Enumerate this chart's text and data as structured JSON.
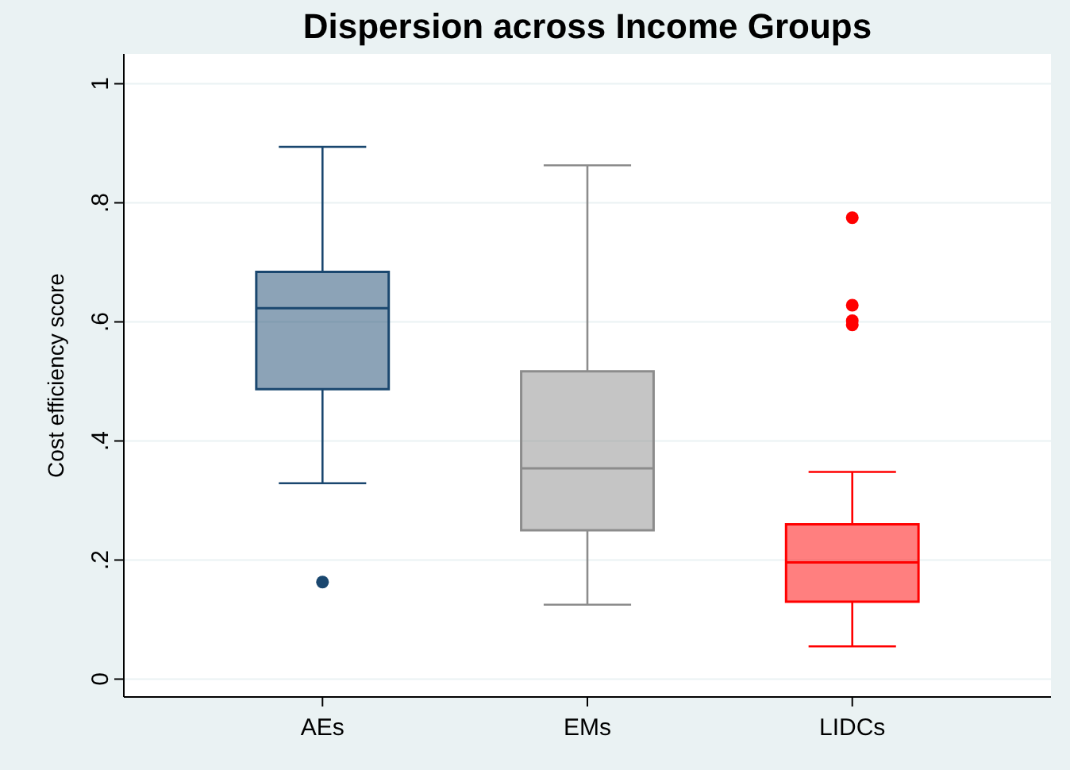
{
  "chart_data": {
    "type": "box",
    "title": "Dispersion across Income Groups",
    "ylabel": "Cost efficiency score",
    "categories": [
      "AEs",
      "EMs",
      "LIDCs"
    ],
    "colors": [
      "#1a476f",
      "#8c8c8c",
      "#ff0000"
    ],
    "boxes": [
      {
        "low": 0.329,
        "q1": 0.487,
        "median": 0.623,
        "q3": 0.684,
        "high": 0.894,
        "outliers": [
          0.163
        ]
      },
      {
        "low": 0.125,
        "q1": 0.25,
        "median": 0.354,
        "q3": 0.517,
        "high": 0.863
      },
      {
        "low": 0.055,
        "q1": 0.13,
        "median": 0.196,
        "q3": 0.26,
        "high": 0.348,
        "outliers": [
          0.775,
          0.628,
          0.602,
          0.595
        ]
      }
    ],
    "ylim": [
      -0.03,
      1.05
    ],
    "yticks": [
      0,
      {
        "value": 0.2,
        "label": ".2"
      },
      {
        "value": 0.4,
        "label": ".4"
      },
      {
        "value": 0.6,
        "label": ".6"
      },
      {
        "value": 0.8,
        "label": ".8"
      },
      1
    ],
    "grid": true
  }
}
